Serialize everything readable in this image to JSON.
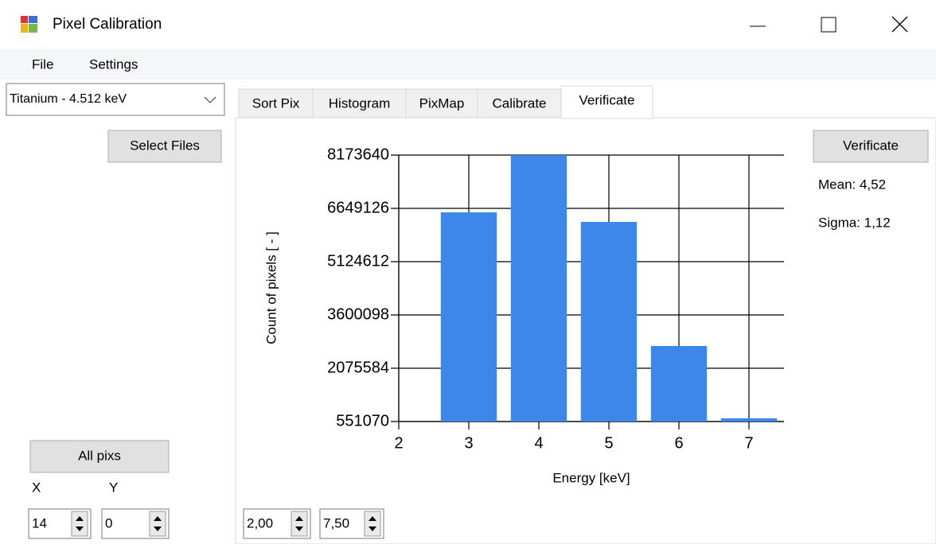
{
  "window": {
    "title": "Pixel Calibration"
  },
  "menu": [
    "File",
    "Settings"
  ],
  "combo": "Titanium - 4.512 keV",
  "buttons": {
    "select_files": "Select Files",
    "verificate": "Verificate",
    "all_pixs": "All pixs"
  },
  "tabs": [
    "Sort Pix",
    "Histogram",
    "PixMap",
    "Calibrate",
    "Verificate"
  ],
  "stats": {
    "mean": "Mean: 4,52",
    "sigma": "Sigma: 1,12"
  },
  "coords": {
    "x_label": "X",
    "y_label": "Y",
    "x_value": "14",
    "y_value": "0"
  },
  "range": {
    "from": "2,00",
    "to": "7,50"
  },
  "chart_data": {
    "type": "bar",
    "x_label": "Energy [keV]",
    "y_label": "Count of pixels [ - ]",
    "x": [
      3,
      4,
      5,
      6,
      7
    ],
    "values": [
      6535000,
      8173640,
      6262000,
      2712000,
      642000
    ],
    "color": "#3d87e8",
    "xlim": [
      2,
      7.5
    ],
    "xticks": [
      2,
      3,
      4,
      5,
      6,
      7
    ],
    "ylim": [
      551070,
      8173640
    ],
    "yticks": [
      551070,
      2075584,
      3600098,
      5124612,
      6649126,
      8173640
    ],
    "grid": true
  }
}
